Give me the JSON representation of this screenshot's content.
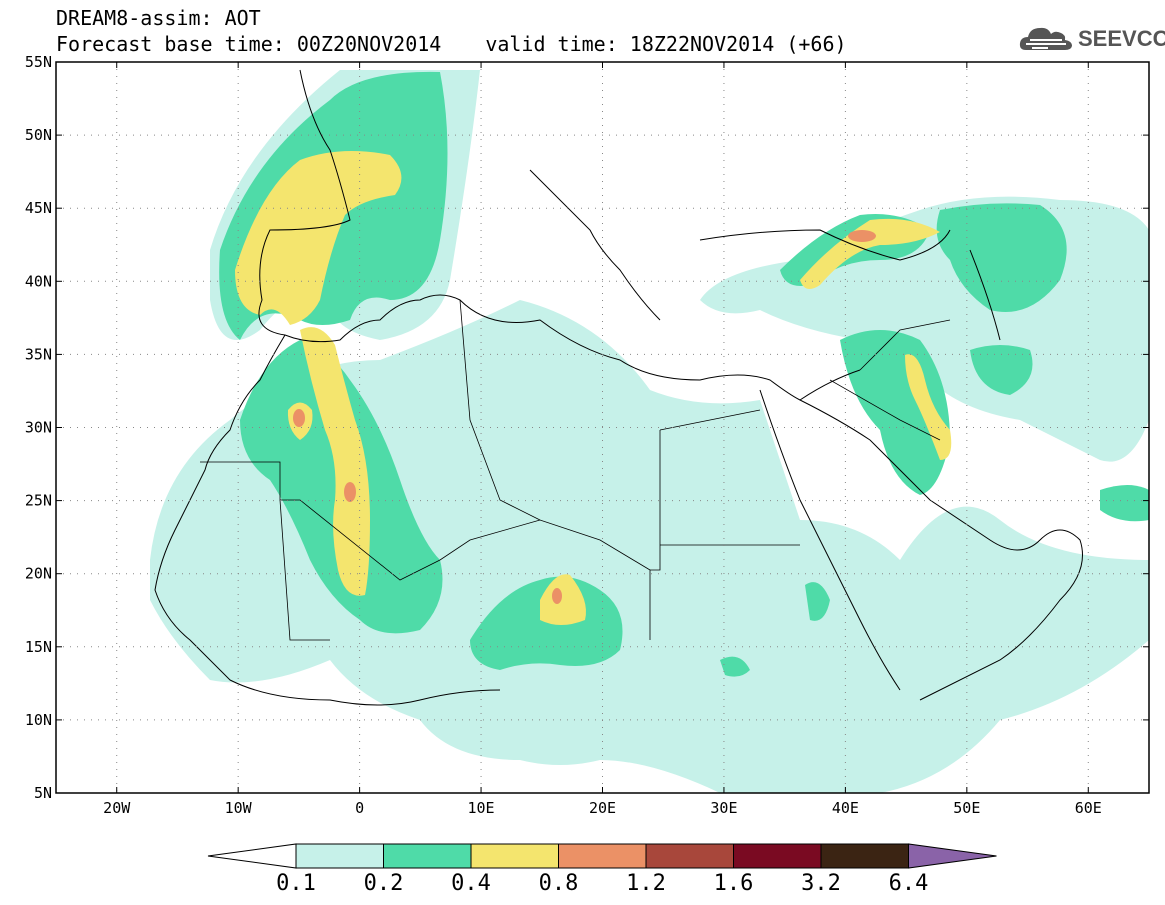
{
  "title": {
    "line1": "DREAM8-assim: AOT",
    "base_time": "Forecast base time: 00Z20NOV2014",
    "valid_time": "valid time: 18Z22NOV2014 (+66)"
  },
  "logo": {
    "text": "SEEVCCC",
    "icon": "cloud-icon"
  },
  "map": {
    "lon_range": [
      -25,
      65
    ],
    "lat_range": [
      5,
      55
    ],
    "lat_ticks": [
      {
        "value": 55,
        "label": "55N"
      },
      {
        "value": 50,
        "label": "50N"
      },
      {
        "value": 45,
        "label": "45N"
      },
      {
        "value": 40,
        "label": "40N"
      },
      {
        "value": 35,
        "label": "35N"
      },
      {
        "value": 30,
        "label": "30N"
      },
      {
        "value": 25,
        "label": "25N"
      },
      {
        "value": 20,
        "label": "20N"
      },
      {
        "value": 15,
        "label": "15N"
      },
      {
        "value": 10,
        "label": "10N"
      },
      {
        "value": 5,
        "label": "5N"
      }
    ],
    "lon_ticks": [
      {
        "value": -20,
        "label": "20W"
      },
      {
        "value": -10,
        "label": "10W"
      },
      {
        "value": 0,
        "label": "0"
      },
      {
        "value": 10,
        "label": "10E"
      },
      {
        "value": 20,
        "label": "20E"
      },
      {
        "value": 30,
        "label": "30E"
      },
      {
        "value": 40,
        "label": "40E"
      },
      {
        "value": 50,
        "label": "50E"
      },
      {
        "value": 60,
        "label": "60E"
      }
    ],
    "grid": "dotted"
  },
  "colorbar": {
    "levels": [
      "0.1",
      "0.2",
      "0.4",
      "0.8",
      "1.2",
      "1.6",
      "3.2",
      "6.4"
    ],
    "colors": [
      "#ffffff",
      "#c6f1e9",
      "#4fdba8",
      "#f4e56e",
      "#eb9166",
      "#a8473b",
      "#7a0a22",
      "#3b2413",
      "#8a63a8"
    ]
  }
}
